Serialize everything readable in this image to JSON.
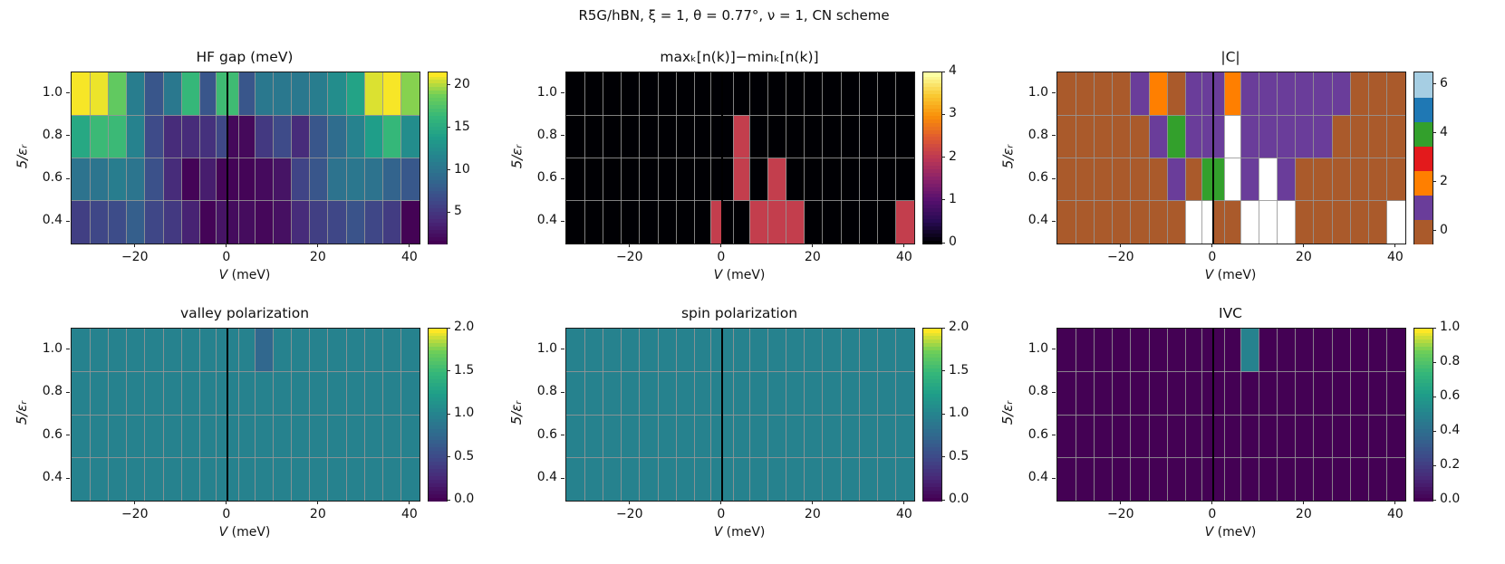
{
  "figure_title": "R5G/hBN,  ξ = 1,  θ = 0.77°,  ν = 1,  CN scheme",
  "axis": {
    "xlabel_var": "V",
    "xlabel_unit": " (meV)",
    "ylabel": "5/εᵣ",
    "xticks": [
      {
        "v": -20,
        "label": "−20"
      },
      {
        "v": 0,
        "label": "0"
      },
      {
        "v": 20,
        "label": "20"
      },
      {
        "v": 40,
        "label": "40"
      }
    ],
    "yticks": [
      {
        "v": 1.0,
        "label": "1.0"
      },
      {
        "v": 0.8,
        "label": "0.8"
      },
      {
        "v": 0.6,
        "label": "0.6"
      },
      {
        "v": 0.4,
        "label": "0.4"
      }
    ],
    "x_range": [
      -34,
      42
    ],
    "y_range": [
      0.3,
      1.1
    ]
  },
  "chart_data": [
    {
      "id": "hf-gap",
      "type": "heatmap",
      "title": "HF gap (meV)",
      "colormap": "viridis",
      "vmin": 1.4,
      "vmax": 21.6,
      "vline_x": 0,
      "x_boundaries": [
        -34,
        -30,
        -26,
        -22,
        -18,
        -14,
        -10,
        -6,
        -2.5,
        0,
        2.5,
        6,
        10,
        14,
        18,
        22,
        26,
        30,
        34,
        38,
        42
      ],
      "x_centers": [
        -32,
        -28,
        -24,
        -20,
        -16,
        -12,
        -8,
        -4,
        -1,
        1,
        4,
        8,
        12,
        16,
        20,
        24,
        28,
        32,
        36,
        40
      ],
      "y_centers": [
        1.0,
        0.8,
        0.6,
        0.4
      ],
      "values": [
        [
          21.5,
          21.3,
          18.5,
          11,
          7.5,
          10.5,
          16.5,
          7.5,
          17,
          17,
          7.5,
          10.5,
          10.5,
          10.5,
          11,
          12.5,
          14.5,
          21,
          21.5,
          19.5
        ],
        [
          15,
          16.8,
          16.8,
          11.5,
          6.5,
          4.2,
          4.2,
          4.6,
          6.2,
          1.9,
          1.9,
          5.2,
          6.5,
          4.2,
          7.5,
          9.5,
          11.5,
          14,
          16.5,
          12.5
        ],
        [
          10,
          10.2,
          11,
          10.2,
          7,
          4.2,
          1.6,
          3.2,
          1.6,
          1.6,
          1.6,
          2,
          2.6,
          6,
          7.5,
          10,
          10.4,
          10,
          8.6,
          7.6
        ],
        [
          5.6,
          6.2,
          6.6,
          8.2,
          6.2,
          5.2,
          3.6,
          1.6,
          2.6,
          2.1,
          2.1,
          1.8,
          2.4,
          4.2,
          5.6,
          6.2,
          7.2,
          6.2,
          5.4,
          1.5
        ]
      ],
      "colorbar_ticks": [
        {
          "value": 5,
          "label": "5"
        },
        {
          "value": 10,
          "label": "10"
        },
        {
          "value": 15,
          "label": "15"
        },
        {
          "value": 20,
          "label": "20"
        }
      ]
    },
    {
      "id": "nk-spread",
      "type": "heatmap",
      "title": "maxₖ[n(k)]−minₖ[n(k)]",
      "colormap": "inferno",
      "vmin": 0,
      "vmax": 4,
      "vline_x": 0,
      "x_boundaries": [
        -34,
        -30,
        -26,
        -22,
        -18,
        -14,
        -10,
        -6,
        -2.5,
        0,
        2.5,
        6,
        10,
        14,
        18,
        22,
        26,
        30,
        34,
        38,
        42
      ],
      "x_centers": [
        -32,
        -28,
        -24,
        -20,
        -16,
        -12,
        -8,
        -4,
        -1,
        1,
        4,
        8,
        12,
        16,
        20,
        24,
        28,
        32,
        36,
        40
      ],
      "y_centers": [
        1.0,
        0.8,
        0.6,
        0.4
      ],
      "values": [
        [
          0,
          0,
          0,
          0,
          0,
          0,
          0,
          0,
          0,
          0,
          0,
          0,
          0,
          0,
          0,
          0,
          0,
          0,
          0,
          0
        ],
        [
          0,
          0,
          0,
          0,
          0,
          0,
          0,
          0,
          0,
          0,
          2.1,
          0,
          0,
          0,
          0,
          0,
          0,
          0,
          0,
          0
        ],
        [
          0,
          0,
          0,
          0,
          0,
          0,
          0,
          0,
          0,
          0,
          2.1,
          0,
          2.1,
          0,
          0,
          0,
          0,
          0,
          0,
          0
        ],
        [
          0,
          0,
          0,
          0,
          0,
          0,
          0,
          0,
          2.1,
          0,
          0,
          2.1,
          2.1,
          2.1,
          0,
          0,
          0,
          0,
          0,
          2.1
        ]
      ],
      "colorbar_ticks": [
        {
          "value": 0,
          "label": "0"
        },
        {
          "value": 1,
          "label": "1"
        },
        {
          "value": 2,
          "label": "2"
        },
        {
          "value": 3,
          "label": "3"
        },
        {
          "value": 4,
          "label": "4"
        }
      ]
    },
    {
      "id": "chern",
      "type": "heatmap",
      "title": "|C|",
      "colormap": "discrete",
      "palette": [
        "#aa5a2b",
        "#6a3d9a",
        "#ff7f00",
        "#e31a1c",
        "#33a02c",
        "#1f78b4",
        "#a6cee3"
      ],
      "nan_color": "#ffffff",
      "n_levels": 7,
      "vline_x": 0,
      "x_boundaries": [
        -34,
        -30,
        -26,
        -22,
        -18,
        -14,
        -10,
        -6,
        -2.5,
        0,
        2.5,
        6,
        10,
        14,
        18,
        22,
        26,
        30,
        34,
        38,
        42
      ],
      "x_centers": [
        -32,
        -28,
        -24,
        -20,
        -16,
        -12,
        -8,
        -4,
        -1,
        1,
        4,
        8,
        12,
        16,
        20,
        24,
        28,
        32,
        36,
        40
      ],
      "y_centers": [
        1.0,
        0.8,
        0.6,
        0.4
      ],
      "values": [
        [
          0,
          0,
          0,
          0,
          1,
          2,
          0,
          1,
          1,
          1,
          2,
          1,
          1,
          1,
          1,
          1,
          1,
          0,
          0,
          0
        ],
        [
          0,
          0,
          0,
          0,
          0,
          1,
          4,
          1,
          1,
          1,
          null,
          1,
          1,
          1,
          1,
          1,
          0,
          0,
          0,
          0
        ],
        [
          0,
          0,
          0,
          0,
          0,
          0,
          1,
          0,
          4,
          4,
          null,
          1,
          null,
          1,
          0,
          0,
          0,
          0,
          0,
          0
        ],
        [
          0,
          0,
          0,
          0,
          0,
          0,
          0,
          null,
          null,
          0,
          0,
          null,
          null,
          null,
          0,
          0,
          0,
          0,
          0,
          null
        ]
      ],
      "colorbar_ticks": [
        {
          "value": 0,
          "label": "0"
        },
        {
          "value": 2,
          "label": "2"
        },
        {
          "value": 4,
          "label": "4"
        },
        {
          "value": 6,
          "label": "6"
        }
      ]
    },
    {
      "id": "valley-polarization",
      "type": "heatmap",
      "title": "valley polarization",
      "colormap": "viridis",
      "vmin": 0,
      "vmax": 2,
      "vline_x": 0,
      "x_boundaries": [
        -34,
        -30,
        -26,
        -22,
        -18,
        -14,
        -10,
        -6,
        -2.5,
        0,
        2.5,
        6,
        10,
        14,
        18,
        22,
        26,
        30,
        34,
        38,
        42
      ],
      "x_centers": [
        -32,
        -28,
        -24,
        -20,
        -16,
        -12,
        -8,
        -4,
        -1,
        1,
        4,
        8,
        12,
        16,
        20,
        24,
        28,
        32,
        36,
        40
      ],
      "y_centers": [
        1.0,
        0.8,
        0.6,
        0.4
      ],
      "values": [
        [
          1,
          1,
          1,
          1,
          1,
          1,
          1,
          1,
          1,
          1,
          1,
          0.75,
          1,
          1,
          1,
          1,
          1,
          1,
          1,
          1
        ],
        [
          1,
          1,
          1,
          1,
          1,
          1,
          1,
          1,
          1,
          1,
          1,
          1,
          1,
          1,
          1,
          1,
          1,
          1,
          1,
          1
        ],
        [
          1,
          1,
          1,
          1,
          1,
          1,
          1,
          1,
          1,
          1,
          1,
          1,
          1,
          1,
          1,
          1,
          1,
          1,
          1,
          1
        ],
        [
          1,
          1,
          1,
          1,
          1,
          1,
          1,
          1,
          1,
          1,
          1,
          1,
          1,
          1,
          1,
          1,
          1,
          1,
          1,
          1
        ]
      ],
      "colorbar_ticks": [
        {
          "value": 0,
          "label": "0.0"
        },
        {
          "value": 0.5,
          "label": "0.5"
        },
        {
          "value": 1,
          "label": "1.0"
        },
        {
          "value": 1.5,
          "label": "1.5"
        },
        {
          "value": 2,
          "label": "2.0"
        }
      ]
    },
    {
      "id": "spin-polarization",
      "type": "heatmap",
      "title": "spin polarization",
      "colormap": "viridis",
      "vmin": 0,
      "vmax": 2,
      "vline_x": 0,
      "x_boundaries": [
        -34,
        -30,
        -26,
        -22,
        -18,
        -14,
        -10,
        -6,
        -2.5,
        0,
        2.5,
        6,
        10,
        14,
        18,
        22,
        26,
        30,
        34,
        38,
        42
      ],
      "x_centers": [
        -32,
        -28,
        -24,
        -20,
        -16,
        -12,
        -8,
        -4,
        -1,
        1,
        4,
        8,
        12,
        16,
        20,
        24,
        28,
        32,
        36,
        40
      ],
      "y_centers": [
        1.0,
        0.8,
        0.6,
        0.4
      ],
      "values": [
        [
          1,
          1,
          1,
          1,
          1,
          1,
          1,
          1,
          1,
          1,
          1,
          1,
          1,
          1,
          1,
          1,
          1,
          1,
          1,
          1
        ],
        [
          1,
          1,
          1,
          1,
          1,
          1,
          1,
          1,
          1,
          1,
          1,
          1,
          1,
          1,
          1,
          1,
          1,
          1,
          1,
          1
        ],
        [
          1,
          1,
          1,
          1,
          1,
          1,
          1,
          1,
          1,
          1,
          1,
          1,
          1,
          1,
          1,
          1,
          1,
          1,
          1,
          1
        ],
        [
          1,
          1,
          1,
          1,
          1,
          1,
          1,
          1,
          1,
          1,
          1,
          1,
          1,
          1,
          1,
          1,
          1,
          1,
          1,
          1
        ]
      ],
      "colorbar_ticks": [
        {
          "value": 0,
          "label": "0.0"
        },
        {
          "value": 0.5,
          "label": "0.5"
        },
        {
          "value": 1,
          "label": "1.0"
        },
        {
          "value": 1.5,
          "label": "1.5"
        },
        {
          "value": 2,
          "label": "2.0"
        }
      ]
    },
    {
      "id": "ivc",
      "type": "heatmap",
      "title": "IVC",
      "colormap": "viridis",
      "vmin": 0,
      "vmax": 1,
      "vline_x": 0,
      "x_boundaries": [
        -34,
        -30,
        -26,
        -22,
        -18,
        -14,
        -10,
        -6,
        -2.5,
        0,
        2.5,
        6,
        10,
        14,
        18,
        22,
        26,
        30,
        34,
        38,
        42
      ],
      "x_centers": [
        -32,
        -28,
        -24,
        -20,
        -16,
        -12,
        -8,
        -4,
        -1,
        1,
        4,
        8,
        12,
        16,
        20,
        24,
        28,
        32,
        36,
        40
      ],
      "y_centers": [
        1.0,
        0.8,
        0.6,
        0.4
      ],
      "values": [
        [
          0,
          0,
          0,
          0,
          0,
          0,
          0,
          0,
          0,
          0,
          0,
          0.5,
          0,
          0,
          0,
          0,
          0,
          0,
          0,
          0
        ],
        [
          0,
          0,
          0,
          0,
          0,
          0,
          0,
          0,
          0,
          0,
          0,
          0,
          0,
          0,
          0,
          0,
          0,
          0,
          0,
          0
        ],
        [
          0,
          0,
          0,
          0,
          0,
          0,
          0,
          0,
          0,
          0,
          0,
          0,
          0,
          0,
          0,
          0,
          0,
          0,
          0,
          0
        ],
        [
          0,
          0,
          0,
          0,
          0,
          0,
          0,
          0,
          0,
          0,
          0,
          0,
          0,
          0,
          0,
          0,
          0,
          0,
          0,
          0
        ]
      ],
      "colorbar_ticks": [
        {
          "value": 0,
          "label": "0.0"
        },
        {
          "value": 0.2,
          "label": "0.2"
        },
        {
          "value": 0.4,
          "label": "0.4"
        },
        {
          "value": 0.6,
          "label": "0.6"
        },
        {
          "value": 0.8,
          "label": "0.8"
        },
        {
          "value": 1,
          "label": "1.0"
        }
      ]
    }
  ]
}
